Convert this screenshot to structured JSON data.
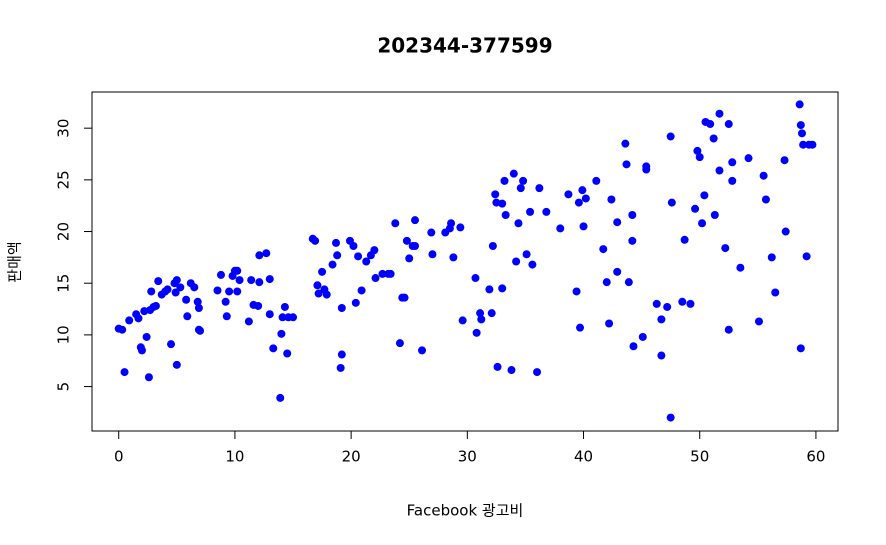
{
  "chart_data": {
    "type": "scatter",
    "title": "202344-377599",
    "x_label": "Facebook 광고비",
    "y_label": "판매액",
    "color": "#0000ff",
    "xlim": [
      -2.3,
      61.9
    ],
    "ylim": [
      0.7,
      33.5
    ],
    "xticks": [
      0,
      10,
      20,
      30,
      40,
      50,
      60
    ],
    "yticks": [
      5,
      10,
      15,
      20,
      25,
      30
    ],
    "x": [
      0,
      0.3,
      0.5,
      0.9,
      1.5,
      1.7,
      1.9,
      2,
      2.2,
      2.4,
      2.6,
      2.7,
      2.8,
      3,
      3.2,
      3.4,
      3.7,
      4,
      4.2,
      4.5,
      4.8,
      4.9,
      5,
      5,
      5.3,
      5.8,
      5.9,
      6.2,
      6.5,
      6.8,
      6.9,
      6.9,
      7,
      8.5,
      8.8,
      9.2,
      9.3,
      9.5,
      9.8,
      10,
      10.2,
      10.2,
      10.4,
      11.2,
      11.4,
      11.6,
      12,
      12.1,
      12.1,
      12.7,
      13,
      13,
      13.3,
      13.9,
      14,
      14.1,
      14.3,
      14.5,
      14.6,
      15,
      16.7,
      16.9,
      17.1,
      17.2,
      17.5,
      17.7,
      17.9,
      18.4,
      18.8,
      18.7,
      19.2,
      19.2,
      19.1,
      19.9,
      20.2,
      20.4,
      20.6,
      20.9,
      21.3,
      21.7,
      22,
      22.1,
      22.7,
      23.2,
      23.4,
      23.8,
      24.2,
      24.4,
      24.6,
      24.8,
      25,
      25.3,
      25.5,
      25.5,
      26.1,
      26.9,
      27,
      28.1,
      28.5,
      28.6,
      28.8,
      29.4,
      29.6,
      30.7,
      30.8,
      31.1,
      31.2,
      31.9,
      32.1,
      32.2,
      32.4,
      32.5,
      32.6,
      33,
      33,
      33.2,
      33.3,
      33.8,
      34,
      34.2,
      34.4,
      34.6,
      34.8,
      35.1,
      35.4,
      35.6,
      36,
      36.2,
      36.8,
      38,
      38.7,
      39.4,
      39.6,
      39.7,
      39.9,
      40,
      40.2,
      41.1,
      41.7,
      42,
      42.2,
      42.4,
      42.9,
      42.9,
      43.6,
      43.7,
      43.9,
      44.2,
      44.2,
      44.3,
      45.1,
      45.4,
      45.4,
      46.3,
      46.7,
      46.7,
      47.2,
      47.5,
      47.5,
      47.6,
      48.5,
      48.7,
      49.2,
      49.6,
      49.8,
      50,
      50.2,
      50.4,
      50.5,
      50.9,
      51.2,
      51.3,
      51.7,
      51.7,
      52.2,
      52.5,
      52.5,
      52.8,
      52.8,
      53.5,
      54.2,
      55.1,
      55.5,
      55.7,
      56.2,
      56.5,
      57.3,
      57.4,
      58.6,
      58.7,
      58.7,
      58.8,
      58.9,
      59.2,
      59.4,
      59.7
    ],
    "values": [
      10.6,
      10.5,
      6.4,
      11.4,
      12,
      11.6,
      8.8,
      8.5,
      12.3,
      9.8,
      5.9,
      12.4,
      14.2,
      12.7,
      12.8,
      15.2,
      13.9,
      14.2,
      14.4,
      9.1,
      15,
      14.1,
      15.3,
      7.1,
      14.6,
      13.4,
      11.8,
      15,
      14.6,
      13.2,
      12.6,
      10.5,
      10.4,
      14.3,
      15.8,
      13.2,
      11.8,
      14.2,
      15.7,
      16.2,
      14.2,
      16.2,
      15.3,
      11.3,
      15.3,
      12.9,
      12.8,
      15.1,
      17.7,
      17.9,
      15.4,
      12,
      8.7,
      3.9,
      10.1,
      11.7,
      12.7,
      8.2,
      11.7,
      11.7,
      19.3,
      19.1,
      14.8,
      14,
      16.1,
      14.4,
      13.9,
      16.8,
      17.7,
      18.9,
      12.6,
      8.1,
      6.8,
      19.1,
      18.6,
      13.1,
      17.6,
      14.3,
      17.1,
      17.7,
      18.2,
      15.5,
      15.9,
      15.9,
      15.9,
      20.8,
      9.2,
      13.6,
      13.6,
      19.1,
      17.4,
      18.6,
      21.1,
      18.6,
      8.5,
      19.9,
      17.8,
      19.9,
      20.3,
      20.8,
      17.5,
      20.4,
      11.4,
      15.5,
      10.2,
      12.1,
      11.5,
      14.4,
      12.1,
      18.6,
      23.6,
      22.8,
      6.9,
      14.5,
      22.7,
      24.9,
      21.6,
      6.6,
      25.6,
      17.1,
      20.8,
      24.2,
      24.9,
      17.8,
      21.9,
      16.8,
      6.4,
      24.2,
      21.9,
      20.3,
      23.6,
      14.2,
      22.8,
      10.7,
      24,
      20.5,
      23.2,
      24.9,
      18.3,
      15.1,
      11.1,
      23.1,
      16.1,
      20.9,
      28.5,
      26.5,
      15.1,
      21.6,
      19.1,
      8.9,
      9.8,
      26,
      26.3,
      13,
      11.5,
      8,
      12.7,
      2,
      29.2,
      22.8,
      13.2,
      19.2,
      13,
      22.2,
      27.8,
      27.2,
      20.8,
      23.5,
      30.6,
      30.4,
      29,
      21.6,
      31.4,
      25.9,
      18.4,
      30.4,
      10.5,
      24.9,
      26.7,
      16.5,
      27.1,
      11.3,
      25.4,
      23.1,
      17.5,
      14.1,
      26.9,
      20,
      32.3,
      30.3,
      8.7,
      29.5,
      28.4,
      17.6,
      28.4,
      28.4
    ]
  }
}
